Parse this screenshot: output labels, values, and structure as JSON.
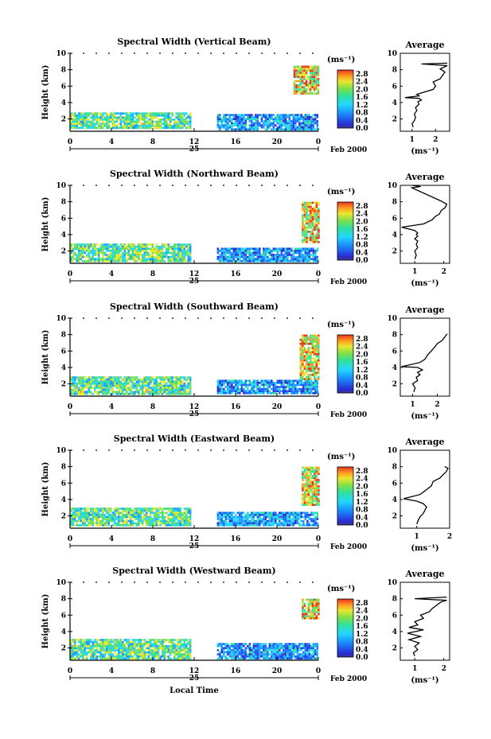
{
  "chart_data": [
    {
      "type": "heatmap",
      "title": "Spectral Width (Vertical Beam)",
      "ylabel": "Height (km)",
      "ylim": [
        0.5,
        10
      ],
      "yticks": [
        "2",
        "4",
        "6",
        "8",
        "10"
      ],
      "xlim": [
        0,
        24
      ],
      "xticks": [
        "0",
        "4",
        "8",
        "12",
        "16",
        "20",
        "0"
      ],
      "date_label": "25",
      "month_year": "Feb 2000",
      "colorbar_unit": "(ms⁻¹)",
      "colorbar_ticks": [
        "0.0",
        "0.4",
        "0.8",
        "1.2",
        "1.6",
        "2.0",
        "2.4",
        "2.8"
      ],
      "data_segments": [
        {
          "x": [
            0,
            11.6
          ],
          "y": [
            0.8,
            2.8
          ]
        },
        {
          "x": [
            14.2,
            24
          ],
          "y": [
            0.8,
            2.6
          ]
        },
        {
          "x": [
            21.6,
            24
          ],
          "y": [
            5.0,
            8.5
          ]
        }
      ],
      "average": {
        "title": "Average",
        "xlabel": "(ms⁻¹)",
        "xticks": [
          "1",
          "2"
        ],
        "yticks": [
          "2",
          "4",
          "6",
          "8",
          "10"
        ],
        "xlim": [
          0.5,
          2.6
        ],
        "ylim": [
          0.5,
          10
        ],
        "x": [
          1.05,
          1.0,
          1.1,
          1.15,
          1.1,
          1.2,
          1.15,
          1.3,
          1.25,
          1.4,
          1.3,
          0.7,
          1.3,
          1.2,
          1.9,
          2.0,
          1.9,
          2.2,
          2.3,
          2.4,
          2.2,
          2.5,
          1.4,
          2.5
        ],
        "y": [
          1.0,
          1.4,
          1.8,
          2.2,
          2.6,
          3.0,
          3.4,
          3.8,
          4.1,
          4.3,
          4.5,
          4.6,
          4.8,
          5.0,
          5.6,
          6.0,
          6.5,
          6.9,
          7.3,
          7.7,
          8.1,
          8.5,
          8.7,
          8.8
        ]
      }
    },
    {
      "type": "heatmap",
      "title": "Spectral Width (Northward Beam)",
      "ylabel": "Height (km)",
      "ylim": [
        0.5,
        10
      ],
      "yticks": [
        "2",
        "4",
        "6",
        "8",
        "10"
      ],
      "xlim": [
        0,
        24
      ],
      "xticks": [
        "0",
        "4",
        "8",
        "12",
        "16",
        "20",
        "0"
      ],
      "date_label": "25",
      "month_year": "Feb 2000",
      "colorbar_unit": "(ms⁻¹)",
      "colorbar_ticks": [
        "0.0",
        "0.4",
        "0.8",
        "1.2",
        "1.6",
        "2.0",
        "2.4",
        "2.8"
      ],
      "data_segments": [
        {
          "x": [
            0,
            11.6
          ],
          "y": [
            0.8,
            2.9
          ]
        },
        {
          "x": [
            14.2,
            24
          ],
          "y": [
            0.8,
            2.4
          ]
        },
        {
          "x": [
            22.4,
            24
          ],
          "y": [
            3.0,
            8.0
          ]
        }
      ],
      "average": {
        "title": "Average",
        "xlabel": "(ms⁻¹)",
        "xticks": [
          "1",
          "2"
        ],
        "yticks": [
          "2",
          "4",
          "6",
          "8",
          "10"
        ],
        "xlim": [
          0.5,
          2.2
        ],
        "ylim": [
          0.5,
          10
        ],
        "x": [
          1.0,
          1.05,
          1.0,
          1.1,
          1.05,
          1.1,
          1.0,
          1.1,
          1.05,
          1.1,
          1.0,
          0.55,
          1.3,
          1.6,
          1.7,
          1.85,
          1.9,
          2.05,
          2.1,
          1.9,
          0.9,
          1.2,
          0.9
        ],
        "y": [
          1.0,
          1.5,
          2.0,
          2.4,
          2.8,
          3.2,
          3.5,
          3.8,
          4.0,
          4.2,
          4.5,
          4.9,
          5.3,
          5.8,
          6.2,
          6.5,
          6.9,
          7.3,
          7.7,
          8.1,
          9.7,
          9.85,
          10.0
        ]
      }
    },
    {
      "type": "heatmap",
      "title": "Spectral Width (Southward Beam)",
      "ylabel": "Height (km)",
      "ylim": [
        0.5,
        10
      ],
      "yticks": [
        "2",
        "4",
        "6",
        "8",
        "10"
      ],
      "xlim": [
        0,
        24
      ],
      "xticks": [
        "0",
        "4",
        "8",
        "12",
        "16",
        "20",
        "0"
      ],
      "date_label": "25",
      "month_year": "Feb 2000",
      "colorbar_unit": "(ms⁻¹)",
      "colorbar_ticks": [
        "0.0",
        "0.4",
        "0.8",
        "1.2",
        "1.6",
        "2.0",
        "2.4",
        "2.8"
      ],
      "data_segments": [
        {
          "x": [
            0,
            11.6
          ],
          "y": [
            0.8,
            2.9
          ]
        },
        {
          "x": [
            14.2,
            24
          ],
          "y": [
            0.8,
            2.5
          ]
        },
        {
          "x": [
            22.2,
            24
          ],
          "y": [
            2.6,
            8.0
          ]
        }
      ],
      "average": {
        "title": "Average",
        "xlabel": "(ms⁻¹)",
        "xticks": [
          "1",
          "2"
        ],
        "yticks": [
          "2",
          "4",
          "6",
          "8",
          "10"
        ],
        "xlim": [
          0.5,
          2.5
        ],
        "ylim": [
          0.5,
          10
        ],
        "x": [
          1.05,
          1.1,
          1.0,
          1.2,
          1.15,
          1.3,
          1.2,
          1.4,
          1.2,
          0.55,
          1.3,
          1.5,
          1.6,
          1.75,
          1.9,
          2.0,
          2.2,
          2.3,
          2.4
        ],
        "y": [
          1.0,
          1.5,
          2.0,
          2.4,
          2.8,
          3.1,
          3.4,
          3.7,
          4.0,
          4.1,
          4.6,
          5.0,
          5.5,
          6.0,
          6.5,
          6.9,
          7.3,
          7.7,
          8.1
        ]
      }
    },
    {
      "type": "heatmap",
      "title": "Spectral Width (Eastward Beam)",
      "ylabel": "Height (km)",
      "ylim": [
        0.5,
        10
      ],
      "yticks": [
        "2",
        "4",
        "6",
        "8",
        "10"
      ],
      "xlim": [
        0,
        24
      ],
      "xticks": [
        "0",
        "4",
        "8",
        "12",
        "16",
        "20",
        "0"
      ],
      "date_label": "25",
      "month_year": "Feb 2000",
      "colorbar_unit": "(ms⁻¹)",
      "colorbar_ticks": [
        "0.0",
        "0.4",
        "0.8",
        "1.2",
        "1.6",
        "2.0",
        "2.4",
        "2.8"
      ],
      "data_segments": [
        {
          "x": [
            0,
            11.6
          ],
          "y": [
            0.8,
            3.0
          ]
        },
        {
          "x": [
            14.2,
            24
          ],
          "y": [
            0.8,
            2.5
          ]
        },
        {
          "x": [
            22.4,
            24
          ],
          "y": [
            3.3,
            8.0
          ]
        }
      ],
      "average": {
        "title": "Average",
        "xlabel": "(ms⁻¹)",
        "xticks": [
          "1",
          "2"
        ],
        "yticks": [
          "2",
          "4",
          "6",
          "8",
          "10"
        ],
        "xlim": [
          0.5,
          2.0
        ],
        "ylim": [
          0.5,
          10
        ],
        "x": [
          1.0,
          1.05,
          1.1,
          1.2,
          1.25,
          1.3,
          1.2,
          1.0,
          0.6,
          1.1,
          1.3,
          1.45,
          1.5,
          1.7,
          1.8,
          1.9,
          1.95,
          1.85
        ],
        "y": [
          1.0,
          1.5,
          1.9,
          2.3,
          2.7,
          3.1,
          3.5,
          3.8,
          4.1,
          4.6,
          5.2,
          5.7,
          6.2,
          6.6,
          7.0,
          7.4,
          7.8,
          8.0
        ]
      }
    },
    {
      "type": "heatmap",
      "title": "Spectral Width (Westward Beam)",
      "ylabel": "Height (km)",
      "ylim": [
        0.5,
        10
      ],
      "yticks": [
        "2",
        "4",
        "6",
        "8",
        "10"
      ],
      "xlim": [
        0,
        24
      ],
      "xticks": [
        "0",
        "4",
        "8",
        "12",
        "16",
        "20",
        "0"
      ],
      "date_label": "25",
      "month_year": "Feb 2000",
      "xlabel": "Local Time",
      "colorbar_unit": "(ms⁻¹)",
      "colorbar_ticks": [
        "0.0",
        "0.4",
        "0.8",
        "1.2",
        "1.6",
        "2.0",
        "2.4",
        "2.8"
      ],
      "data_segments": [
        {
          "x": [
            0,
            11.6
          ],
          "y": [
            0.8,
            3.1
          ]
        },
        {
          "x": [
            14.2,
            24
          ],
          "y": [
            0.8,
            2.6
          ]
        },
        {
          "x": [
            22.4,
            24
          ],
          "y": [
            5.5,
            8.0
          ]
        }
      ],
      "average": {
        "title": "Average",
        "xlabel": "(ms⁻¹)",
        "xticks": [
          "1",
          "2"
        ],
        "yticks": [
          "2",
          "4",
          "6",
          "8",
          "10"
        ],
        "xlim": [
          0.5,
          2.2
        ],
        "ylim": [
          0.5,
          10
        ],
        "x": [
          1.0,
          0.95,
          1.1,
          1.0,
          1.15,
          0.8,
          1.2,
          0.75,
          1.3,
          0.8,
          1.1,
          1.0,
          1.3,
          1.2,
          1.5,
          1.6,
          1.75,
          1.9,
          2.1,
          1.0,
          2.1
        ],
        "y": [
          1.0,
          1.4,
          1.8,
          2.2,
          2.6,
          3.0,
          3.4,
          3.8,
          4.2,
          4.5,
          4.8,
          5.2,
          5.6,
          6.0,
          6.4,
          6.8,
          7.2,
          7.6,
          7.8,
          8.0,
          8.2
        ]
      }
    }
  ]
}
